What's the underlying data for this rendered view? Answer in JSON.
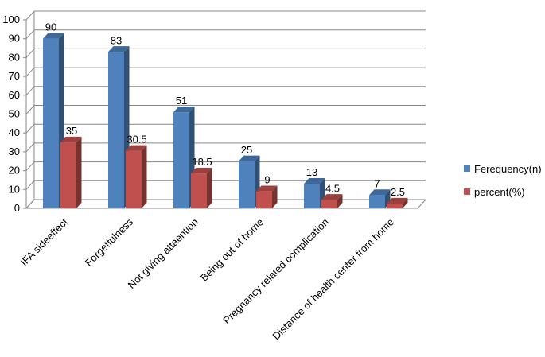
{
  "chart_data": {
    "type": "bar",
    "categories": [
      "IFA sideeffect",
      "Forgetfulness",
      "Not giving attaention",
      "Being out of home",
      "Pregnancy related complication",
      "Distance of health center from home"
    ],
    "series": [
      {
        "name": "Ferequency(n)",
        "values": [
          90,
          83,
          51,
          25,
          13,
          7
        ],
        "labels": [
          "90",
          "83",
          "51",
          "25",
          "13",
          "7"
        ],
        "color": "#4F81BD"
      },
      {
        "name": "percent(%)",
        "values": [
          35,
          30.5,
          18.5,
          9,
          4.5,
          2.5
        ],
        "labels": [
          "35",
          "30.5",
          "18.5",
          "9",
          "4.5",
          "2.5"
        ],
        "color": "#C0504D"
      }
    ],
    "ylim": [
      0,
      100
    ],
    "yticks": [
      "0",
      "10",
      "20",
      "30",
      "40",
      "50",
      "60",
      "70",
      "80",
      "90",
      "100"
    ],
    "grid": true,
    "legend_position": "right",
    "title": "",
    "xlabel": "",
    "ylabel": ""
  }
}
